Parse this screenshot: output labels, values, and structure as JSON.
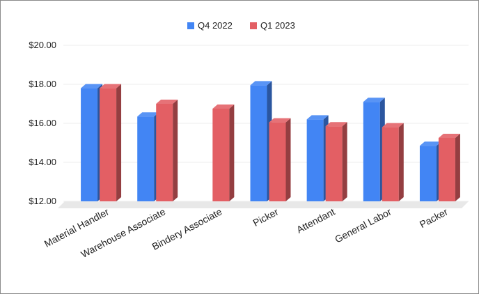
{
  "chart_data": {
    "type": "bar",
    "categories": [
      "Material Handler",
      "Warehouse Associate",
      "Bindery Associate",
      "Picker",
      "Attendant",
      "General Labor",
      "Packer"
    ],
    "series": [
      {
        "name": "Q4 2022",
        "color": "#4285f4",
        "values": [
          17.8,
          16.35,
          null,
          17.95,
          16.2,
          17.1,
          14.85
        ]
      },
      {
        "name": "Q1 2023",
        "color": "#e35f64",
        "values": [
          17.8,
          17.0,
          16.75,
          16.05,
          15.85,
          15.8,
          15.25
        ]
      }
    ],
    "ylim": [
      12,
      20
    ],
    "yticks": [
      12,
      14,
      16,
      18,
      20
    ],
    "ytick_labels": [
      "$12.00",
      "$14.00",
      "$16.00",
      "$18.00",
      "$20.00"
    ],
    "legend_position": "top-center",
    "grid": true,
    "style": "3d-bar"
  }
}
